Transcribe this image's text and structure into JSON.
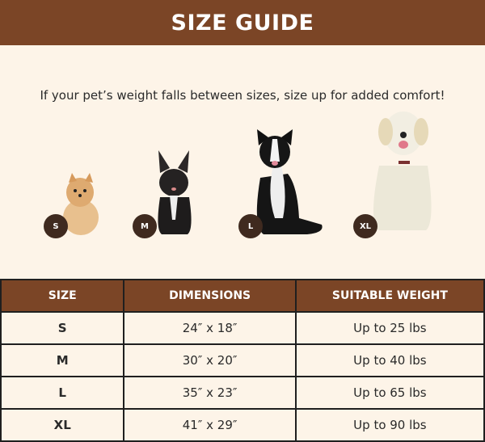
{
  "header": {
    "title": "SIZE GUIDE"
  },
  "note": "If your pet’s weight falls between sizes, size up for added comfort!",
  "dogs": [
    {
      "badge": "S",
      "image": "pomeranian"
    },
    {
      "badge": "M",
      "image": "french-bulldog"
    },
    {
      "badge": "L",
      "image": "border-collie"
    },
    {
      "badge": "XL",
      "image": "golden-retriever"
    }
  ],
  "table": {
    "headers": [
      "SIZE",
      "DIMENSIONS",
      "SUITABLE WEIGHT"
    ],
    "rows": [
      [
        "S",
        "24″ x 18″",
        "Up to 25 lbs"
      ],
      [
        "M",
        "30″ x 20″",
        "Up to 40 lbs"
      ],
      [
        "L",
        "35″ x 23″",
        "Up to 65 lbs"
      ],
      [
        "XL",
        "41″ x 29″",
        "Up to 90 lbs"
      ]
    ]
  },
  "colors": {
    "brand": "#7b4526",
    "background": "#fdf4e8",
    "badge": "#3f2a1f"
  }
}
